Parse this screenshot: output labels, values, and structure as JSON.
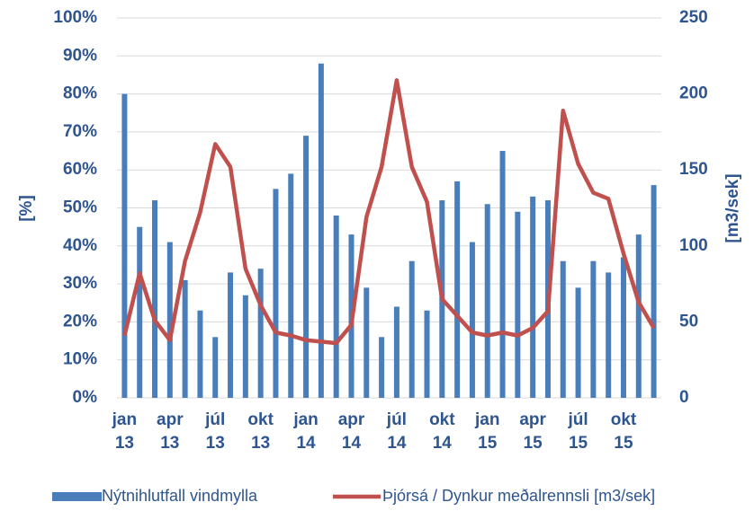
{
  "chart_data": {
    "type": "bar_line",
    "categories": [
      "jan 13",
      null,
      null,
      "apr 13",
      null,
      null,
      "júl 13",
      null,
      null,
      "okt 13",
      null,
      null,
      "jan 14",
      null,
      null,
      "apr 14",
      null,
      null,
      "júl 14",
      null,
      null,
      "okt 14",
      null,
      null,
      "jan 15",
      null,
      null,
      "apr 15",
      null,
      null,
      "júl 15",
      null,
      null,
      "okt 15",
      null,
      null
    ],
    "series": [
      {
        "name": "Nýtnihlutfall vindmylla",
        "type": "bar",
        "color": "#4a7ebb",
        "axis": "y",
        "values": [
          80,
          45,
          52,
          41,
          31,
          23,
          16,
          33,
          27,
          34,
          55,
          59,
          69,
          88,
          48,
          43,
          29,
          16,
          24,
          36,
          23,
          52,
          57,
          41,
          51,
          65,
          49,
          53,
          52,
          36,
          29,
          36,
          33,
          37,
          43,
          56
        ]
      },
      {
        "name": "Þjórsá / Dynkur meðalrennsli [m3/sek]",
        "type": "line",
        "color": "#c0504d",
        "axis": "y2",
        "values": [
          41,
          82,
          51,
          38,
          90,
          122,
          167,
          152,
          85,
          61,
          43,
          41,
          38,
          37,
          36,
          48,
          119,
          152,
          209,
          152,
          129,
          65,
          54,
          43,
          41,
          43,
          41,
          46,
          57,
          189,
          154,
          135,
          131,
          95,
          63,
          46
        ]
      }
    ],
    "ylabel": "[%]",
    "y2label": "[m3/sek]",
    "ylim": [
      0,
      100
    ],
    "yticks": [
      {
        "value": 0,
        "label": "0%"
      },
      {
        "value": 10,
        "label": "10%"
      },
      {
        "value": 20,
        "label": "20%"
      },
      {
        "value": 30,
        "label": "30%"
      },
      {
        "value": 40,
        "label": "40%"
      },
      {
        "value": 50,
        "label": "50%"
      },
      {
        "value": 60,
        "label": "60%"
      },
      {
        "value": 70,
        "label": "70%"
      },
      {
        "value": 80,
        "label": "80%"
      },
      {
        "value": 90,
        "label": "90%"
      },
      {
        "value": 100,
        "label": "100%"
      }
    ],
    "y2lim": [
      0,
      250
    ],
    "y2ticks": [
      0,
      50,
      100,
      150,
      200,
      250
    ],
    "grid": true,
    "legend": "bottom"
  }
}
